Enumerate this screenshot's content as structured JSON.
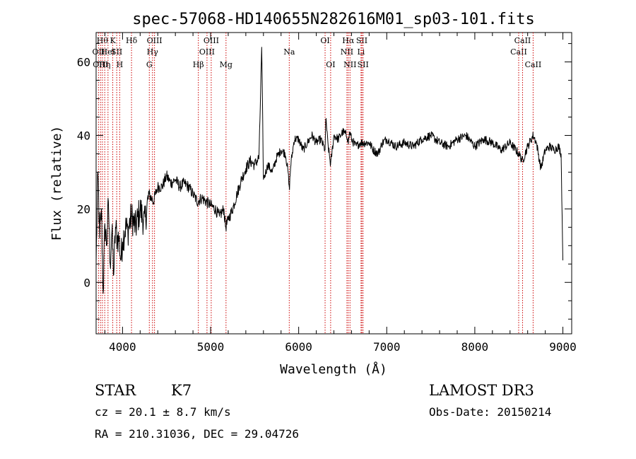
{
  "chart_data": {
    "type": "line",
    "title": "spec-57068-HD140655N282616M01_sp03-101.fits",
    "xlabel": "Wavelength (Å)",
    "ylabel": "Flux (relative)",
    "xlim": [
      3700,
      9100
    ],
    "ylim": [
      -14,
      68
    ],
    "xticks": [
      4000,
      5000,
      6000,
      7000,
      8000,
      9000
    ],
    "yticks": [
      0,
      20,
      40,
      60
    ],
    "grid": false,
    "line_color": "#000000",
    "marker_color": "#cc0000",
    "series": [
      {
        "x": [
          3700,
          3720,
          3740,
          3760,
          3780,
          3800,
          3820,
          3840,
          3860,
          3880,
          3900,
          3920,
          3940,
          3960,
          3980,
          4000,
          4030,
          4060,
          4100,
          4150,
          4200,
          4250,
          4300,
          4350,
          4400,
          4450,
          4500,
          4550,
          4600,
          4650,
          4700,
          4750,
          4800,
          4850,
          4900,
          4950,
          5000,
          5050,
          5100,
          5150,
          5170,
          5200,
          5250,
          5300,
          5350,
          5400,
          5450,
          5500,
          5550,
          5580,
          5600,
          5650,
          5700,
          5750,
          5800,
          5850,
          5880,
          5893,
          5910,
          5950,
          6000,
          6050,
          6100,
          6150,
          6200,
          6250,
          6300,
          6310,
          6330,
          6363,
          6400,
          6450,
          6500,
          6550,
          6563,
          6580,
          6600,
          6650,
          6700,
          6750,
          6800,
          6850,
          6900,
          6950,
          7000,
          7100,
          7200,
          7300,
          7400,
          7500,
          7600,
          7700,
          7800,
          7900,
          8000,
          8100,
          8200,
          8300,
          8400,
          8500,
          8542,
          8600,
          8662,
          8700,
          8750,
          8800,
          8850,
          8900,
          8950,
          8980,
          9000
        ],
        "values": [
          5,
          30,
          12,
          20,
          -3,
          16,
          10,
          22,
          5,
          14,
          2,
          15,
          12,
          12,
          6,
          11,
          15,
          14,
          18,
          15,
          20,
          16,
          24,
          22,
          26,
          26,
          29,
          27,
          28,
          26,
          27,
          26,
          24,
          22,
          23,
          22,
          21,
          20,
          18,
          20,
          15,
          17,
          20,
          24,
          28,
          31,
          33,
          32,
          34,
          64,
          28,
          32,
          30,
          34,
          36,
          35,
          30,
          25,
          32,
          39,
          39,
          36,
          38,
          40,
          38,
          39,
          36,
          45,
          38,
          32,
          40,
          39,
          41,
          40,
          38,
          41,
          39,
          37,
          38,
          38,
          38,
          36,
          35,
          38,
          39,
          37,
          38,
          37,
          39,
          40,
          38,
          37,
          39,
          40,
          37,
          39,
          38,
          36,
          38,
          35,
          33,
          37,
          40,
          38,
          31,
          36,
          37,
          36,
          37,
          35,
          6
        ]
      }
    ],
    "line_markers": [
      {
        "wavelength": 3727,
        "label": "OII",
        "row": 2
      },
      {
        "wavelength": 3750,
        "label": "OIII",
        "row": 3
      },
      {
        "wavelength": 3771,
        "label": "Hθ",
        "row": 1
      },
      {
        "wavelength": 3798,
        "label": "Hη",
        "row": 3
      },
      {
        "wavelength": 3835,
        "label": "HeI",
        "row": 2
      },
      {
        "wavelength": 3889,
        "label": "K",
        "row": 1
      },
      {
        "wavelength": 3934,
        "label": "SII",
        "row": 2
      },
      {
        "wavelength": 3968,
        "label": "H",
        "row": 3
      },
      {
        "wavelength": 4102,
        "label": "Hδ",
        "row": 1
      },
      {
        "wavelength": 4304,
        "label": "G",
        "row": 3
      },
      {
        "wavelength": 4340,
        "label": "Hγ",
        "row": 2
      },
      {
        "wavelength": 4363,
        "label": "OIII",
        "row": 1
      },
      {
        "wavelength": 4861,
        "label": "Hβ",
        "row": 3
      },
      {
        "wavelength": 4959,
        "label": "OIII",
        "row": 2
      },
      {
        "wavelength": 5007,
        "label": "OIII",
        "row": 1
      },
      {
        "wavelength": 5175,
        "label": "Mg",
        "row": 3
      },
      {
        "wavelength": 5893,
        "label": "Na",
        "row": 2
      },
      {
        "wavelength": 6300,
        "label": "OI",
        "row": 1
      },
      {
        "wavelength": 6363,
        "label": "OI",
        "row": 3
      },
      {
        "wavelength": 6548,
        "label": "NII",
        "row": 2
      },
      {
        "wavelength": 6563,
        "label": "Hα",
        "row": 1
      },
      {
        "wavelength": 6583,
        "label": "NII",
        "row": 3
      },
      {
        "wavelength": 6708,
        "label": "Li",
        "row": 2
      },
      {
        "wavelength": 6717,
        "label": "SII",
        "row": 1
      },
      {
        "wavelength": 6731,
        "label": "SII",
        "row": 3
      },
      {
        "wavelength": 8498,
        "label": "CaII",
        "row": 2
      },
      {
        "wavelength": 8542,
        "label": "CaII",
        "row": 1
      },
      {
        "wavelength": 8662,
        "label": "CaII",
        "row": 3
      }
    ]
  },
  "info": {
    "class": "STAR",
    "subclass": "K7",
    "cz": "cz = 20.1 ± 8.7 km/s",
    "coords": "RA = 210.31036, DEC =  29.04726",
    "survey": "LAMOST DR3",
    "obs_date": "Obs-Date: 20150214"
  }
}
